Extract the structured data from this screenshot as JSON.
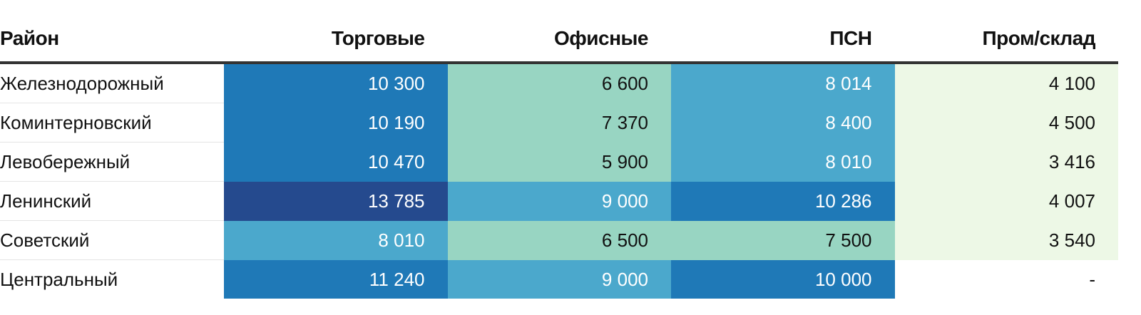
{
  "colors": {
    "scale": [
      "#edf8e6",
      "#98d5c2",
      "#4ba8cc",
      "#1f79b7",
      "#254a8e"
    ],
    "text_light": "#ffffff",
    "text_dark": "#111111",
    "empty_cell": "#ffffff"
  },
  "chart_data": {
    "type": "table",
    "title": "",
    "columns": [
      "Район",
      "Торговые",
      "Офисные",
      "ПСН",
      "Пром/склад"
    ],
    "rows": [
      {
        "district": "Железнодорожный",
        "values": [
          "10 300",
          "6 600",
          "8 014",
          "4 100"
        ],
        "levels": [
          3,
          1,
          2,
          0
        ]
      },
      {
        "district": "Коминтерновский",
        "values": [
          "10 190",
          "7 370",
          "8 400",
          "4 500"
        ],
        "levels": [
          3,
          1,
          2,
          0
        ]
      },
      {
        "district": "Левобережный",
        "values": [
          "10 470",
          "5 900",
          "8 010",
          "3 416"
        ],
        "levels": [
          3,
          1,
          2,
          0
        ]
      },
      {
        "district": "Ленинский",
        "values": [
          "13 785",
          "9 000",
          "10 286",
          "4 007"
        ],
        "levels": [
          4,
          2,
          3,
          0
        ]
      },
      {
        "district": "Советский",
        "values": [
          "8 010",
          "6 500",
          "7 500",
          "3 540"
        ],
        "levels": [
          2,
          1,
          1,
          0
        ]
      },
      {
        "district": "Центральный",
        "values": [
          "11 240",
          "9 000",
          "10 000",
          "-"
        ],
        "levels": [
          3,
          2,
          3,
          null
        ]
      }
    ]
  }
}
